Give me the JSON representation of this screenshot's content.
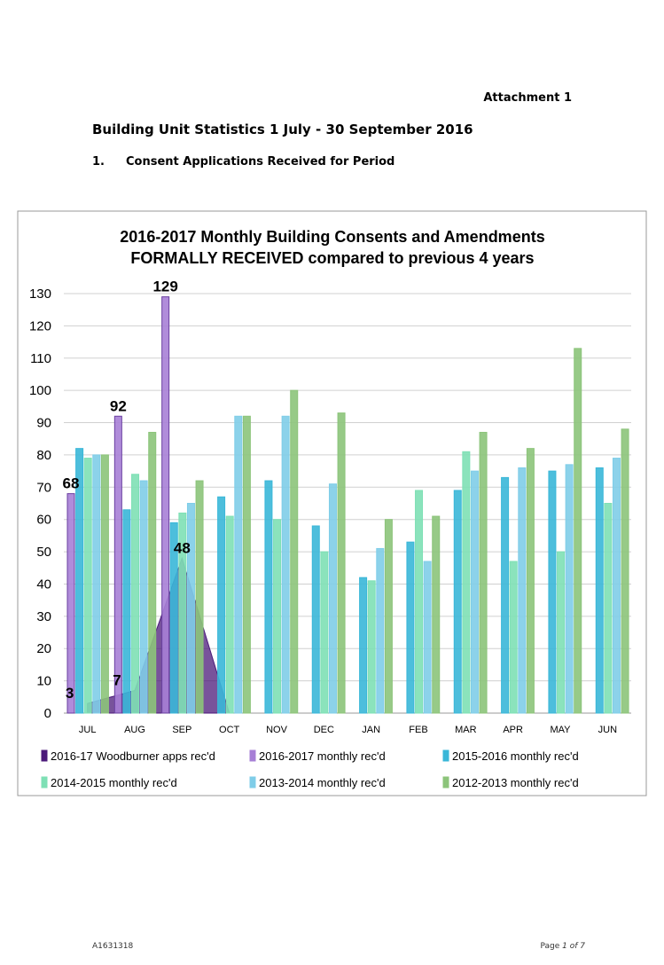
{
  "header": {
    "attachment": "Attachment 1",
    "title": "Building Unit Statistics 1 July - 30 September 2016"
  },
  "section": {
    "number": "1.",
    "heading": "Consent Applications  Received for Period"
  },
  "chart_data": {
    "type": "bar",
    "title": "2016-2017 Monthly Building Consents and Amendments",
    "subtitle": "FORMALLY RECEIVED compared to previous 4 years",
    "categories": [
      "JUL",
      "AUG",
      "SEP",
      "OCT",
      "NOV",
      "DEC",
      "JAN",
      "FEB",
      "MAR",
      "APR",
      "MAY",
      "JUN"
    ],
    "ylim": [
      0,
      130
    ],
    "yticks": [
      0,
      10,
      20,
      30,
      40,
      50,
      60,
      70,
      80,
      90,
      100,
      110,
      120,
      130
    ],
    "grid": true,
    "legend": "bottom",
    "series": [
      {
        "name": "2016-17 Woodburner apps rec'd",
        "type": "area",
        "color": "#4b1a7a",
        "show_labels": true,
        "values": [
          3,
          7,
          48,
          0,
          null,
          null,
          null,
          null,
          null,
          null,
          null,
          null
        ]
      },
      {
        "name": "2016-2017 monthly rec'd",
        "type": "bar",
        "color": "#a77fd6",
        "show_labels": true,
        "values": [
          68,
          92,
          129,
          null,
          null,
          null,
          null,
          null,
          null,
          null,
          null,
          null
        ]
      },
      {
        "name": "2015-2016 monthly rec'd",
        "type": "bar",
        "color": "#3ab7d8",
        "values": [
          82,
          63,
          59,
          67,
          72,
          58,
          42,
          53,
          69,
          73,
          75,
          76
        ]
      },
      {
        "name": "2014-2015 monthly rec'd",
        "type": "bar",
        "color": "#7ee0b5",
        "values": [
          79,
          74,
          62,
          61,
          60,
          50,
          41,
          69,
          81,
          47,
          50,
          65
        ]
      },
      {
        "name": "2013-2014 monthly rec'd",
        "type": "bar",
        "color": "#7fcde8",
        "values": [
          80,
          72,
          65,
          92,
          92,
          71,
          51,
          47,
          75,
          76,
          77,
          79
        ]
      },
      {
        "name": "2012-2013 monthly rec'd",
        "type": "bar",
        "color": "#8cc47a",
        "values": [
          80,
          87,
          72,
          92,
          100,
          93,
          60,
          61,
          87,
          82,
          113,
          88
        ]
      }
    ]
  },
  "footer": {
    "doc_id": "A1631318",
    "page_label": "Page",
    "page_number": "1 of 7"
  }
}
